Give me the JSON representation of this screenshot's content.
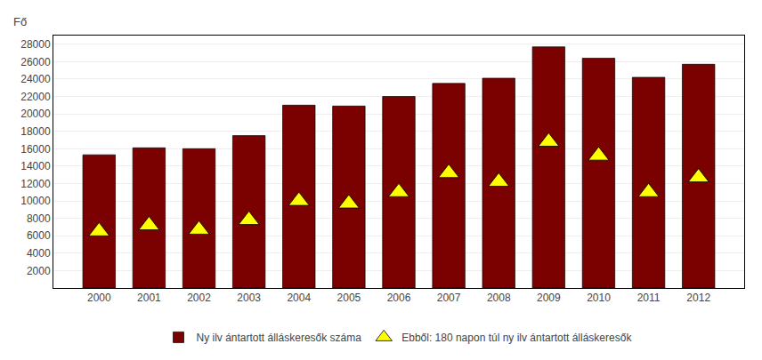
{
  "chart_data": {
    "type": "bar",
    "ylabel": "Fő",
    "categories": [
      "2000",
      "2001",
      "2002",
      "2003",
      "2004",
      "2005",
      "2006",
      "2007",
      "2008",
      "2009",
      "2010",
      "2011",
      "2012"
    ],
    "series": [
      {
        "name": "Ny ilv ántartott álláskeresők száma",
        "type": "bar",
        "color": "#7B0000",
        "values": [
          15300,
          16100,
          16000,
          17500,
          21000,
          20900,
          22000,
          23500,
          24100,
          27700,
          26400,
          24200,
          25700
        ]
      },
      {
        "name": "Ebből: 180 napon túl ny ilv ántartott álláskeresők",
        "type": "scatter",
        "color": "#FFFF00",
        "marker": "triangle-up",
        "values": [
          6500,
          7200,
          6700,
          7800,
          10000,
          9700,
          11000,
          13200,
          12200,
          16800,
          15200,
          11000,
          12700
        ]
      }
    ],
    "ylim": [
      0,
      29000
    ],
    "yticks": [
      2000,
      4000,
      6000,
      8000,
      10000,
      12000,
      14000,
      16000,
      18000,
      20000,
      22000,
      24000,
      26000,
      28000
    ],
    "grid": true,
    "legend": "lower center"
  }
}
